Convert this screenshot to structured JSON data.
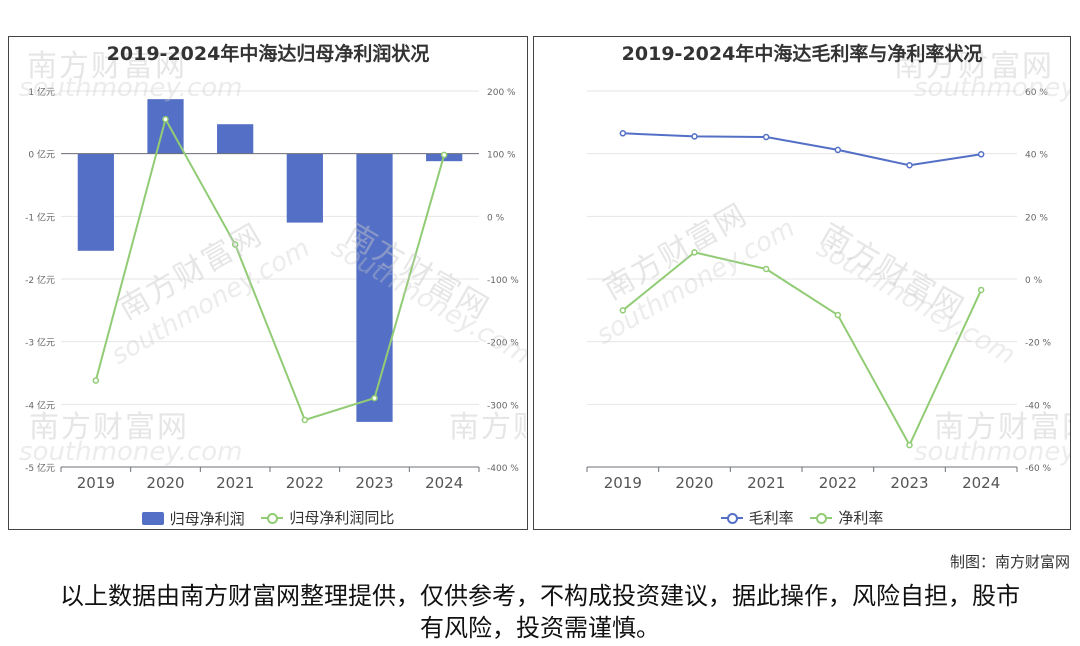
{
  "chart_data": [
    {
      "type": "bar",
      "title": "2019-2024年中海达归母净利润状况",
      "categories": [
        "2019",
        "2020",
        "2021",
        "2022",
        "2023",
        "2024"
      ],
      "series": [
        {
          "name": "归母净利润",
          "type": "bar",
          "axis": "left",
          "color": "#5470c6",
          "values": [
            -1.55,
            0.87,
            0.47,
            -1.1,
            -4.28,
            -0.12
          ]
        },
        {
          "name": "归母净利润同比",
          "type": "line",
          "axis": "right",
          "color": "#91cc75",
          "values": [
            -262,
            155,
            -45,
            -325,
            -290,
            98
          ]
        }
      ],
      "left_axis": {
        "min": -5,
        "max": 1,
        "ticks": [
          1,
          0,
          -1,
          -2,
          -3,
          -4,
          -5
        ],
        "tick_labels": [
          "1 亿元",
          "0 亿元",
          "-1 亿元",
          "-2 亿元",
          "-3 亿元",
          "-4 亿元",
          "-5 亿元"
        ]
      },
      "right_axis": {
        "min": -400,
        "max": 200,
        "ticks": [
          200,
          100,
          0,
          -100,
          -200,
          -300,
          -400
        ],
        "tick_labels": [
          "200 %",
          "100 %",
          "0 %",
          "-100 %",
          "-200 %",
          "-300 %",
          "-400 %"
        ]
      },
      "grid": true,
      "legend_position": "bottom"
    },
    {
      "type": "line",
      "title": "2019-2024年中海达毛利率与净利率状况",
      "categories": [
        "2019",
        "2020",
        "2021",
        "2022",
        "2023",
        "2024"
      ],
      "series": [
        {
          "name": "毛利率",
          "color": "#5470c6",
          "values": [
            46.5,
            45.5,
            45.3,
            41.2,
            36.3,
            39.8
          ]
        },
        {
          "name": "净利率",
          "color": "#91cc75",
          "values": [
            -10,
            8.5,
            3.2,
            -11.5,
            -53,
            -3.5
          ]
        }
      ],
      "right_axis": {
        "min": -60,
        "max": 60,
        "ticks": [
          60,
          40,
          20,
          0,
          -20,
          -40,
          -60
        ],
        "tick_labels": [
          "60 %",
          "40 %",
          "20 %",
          "0 %",
          "-20 %",
          "-40 %",
          "-60 %"
        ]
      },
      "grid": true,
      "legend_position": "bottom"
    }
  ],
  "watermark": {
    "cn": "南方财富网",
    "en": "southmoney.com"
  },
  "credit": "制图：南方财富网",
  "disclaimer": "以上数据由南方财富网整理提供，仅供参考，不构成投资建议，据此操作，风险自担，股市有风险，投资需谨慎。"
}
